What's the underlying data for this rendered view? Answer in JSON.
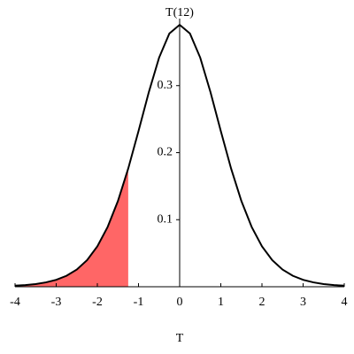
{
  "chart_data": {
    "type": "line",
    "title": "T(12)",
    "x_label": "T",
    "x": [
      -4,
      -3.75,
      -3.5,
      -3.25,
      -3,
      -2.75,
      -2.5,
      -2.25,
      -2,
      -1.75,
      -1.5,
      -1.25,
      -1,
      -0.75,
      -0.5,
      -0.25,
      0,
      0.25,
      0.5,
      0.75,
      1,
      1.25,
      1.5,
      1.75,
      2,
      2.25,
      2.5,
      2.75,
      3,
      3.25,
      3.5,
      3.75,
      4
    ],
    "series": [
      {
        "color": "#000000",
        "values": [
          0.0016,
          0.0025,
          0.004,
          0.0065,
          0.0103,
          0.0163,
          0.0256,
          0.0397,
          0.0602,
          0.0892,
          0.1279,
          0.1763,
          0.2322,
          0.2901,
          0.3417,
          0.3777,
          0.3907,
          0.3777,
          0.3417,
          0.2901,
          0.2322,
          0.1763,
          0.1279,
          0.0892,
          0.0602,
          0.0397,
          0.0256,
          0.0163,
          0.0103,
          0.0065,
          0.004,
          0.0025,
          0.0016
        ]
      }
    ],
    "shade": {
      "from": -4,
      "to": -1.25,
      "color": "#ff6666"
    },
    "xlim": [
      -4,
      4
    ],
    "xticks": [
      -4,
      -3,
      -2,
      -1,
      0,
      1,
      2,
      3,
      4
    ],
    "ylim": [
      0,
      0.4
    ],
    "yticks": [
      0.1,
      0.2,
      0.3
    ]
  }
}
